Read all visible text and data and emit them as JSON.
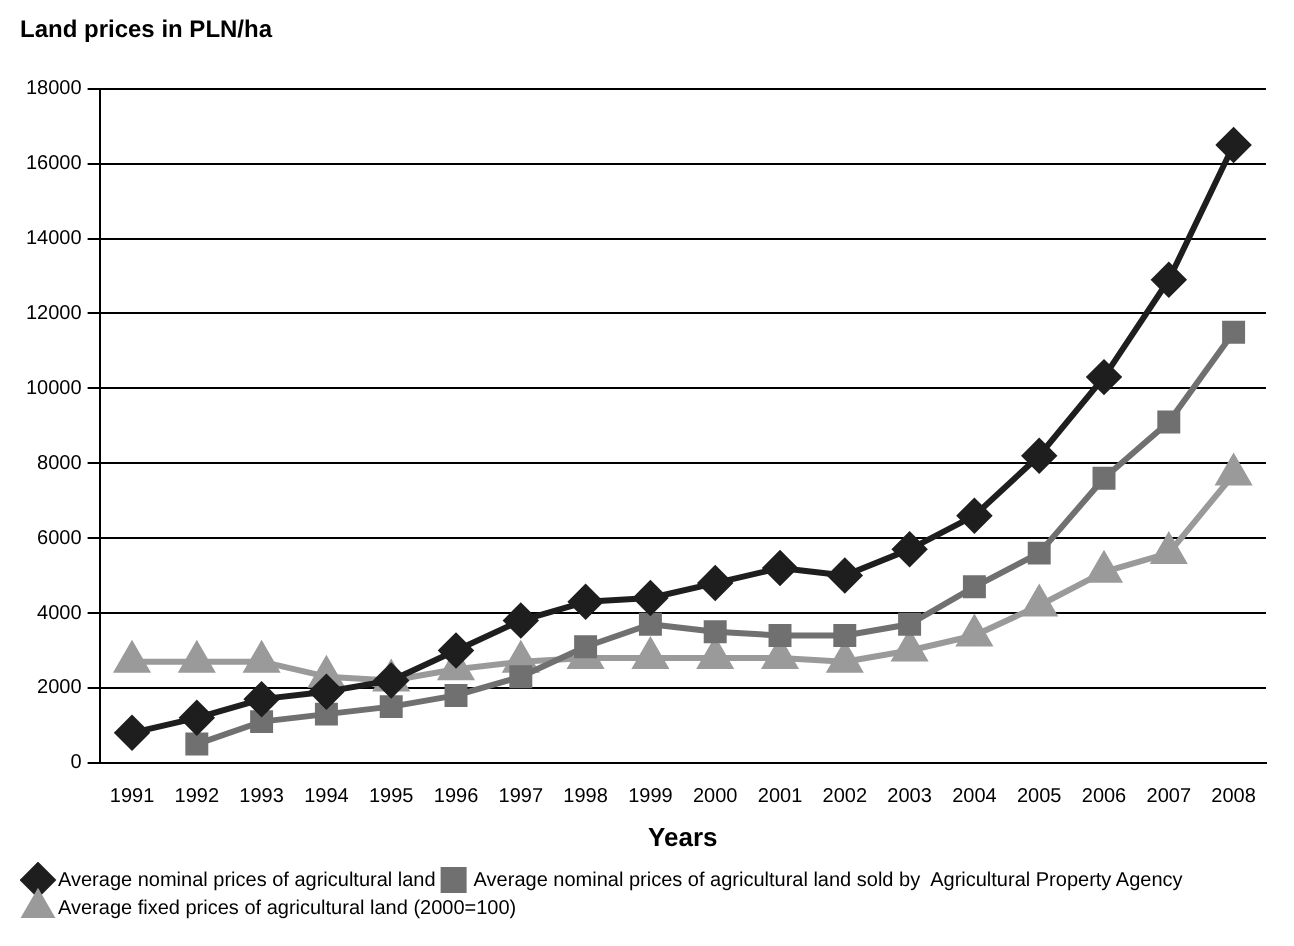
{
  "chart_data": {
    "type": "line",
    "title": "Land prices in PLN/ha",
    "xlabel": "Years",
    "categories": [
      "1991",
      "1992",
      "1993",
      "1994",
      "1995",
      "1996",
      "1997",
      "1998",
      "1999",
      "2000",
      "2001",
      "2002",
      "2003",
      "2004",
      "2005",
      "2006",
      "2007",
      "2008"
    ],
    "series": [
      {
        "name": "Average nominal prices of agricultural land",
        "color": "#1e1e1e",
        "marker": "diamond",
        "values": [
          800,
          1200,
          1700,
          1900,
          2200,
          3000,
          3800,
          4300,
          4400,
          4800,
          5200,
          5000,
          5700,
          6600,
          8200,
          10300,
          12900,
          16500
        ]
      },
      {
        "name": "Average nominal prices of agricultural land sold by  Agricultural Property Agency",
        "color": "#707070",
        "marker": "square",
        "values": [
          null,
          500,
          1100,
          1300,
          1500,
          1800,
          2300,
          3100,
          3700,
          3500,
          3400,
          3400,
          3700,
          4700,
          5600,
          7600,
          9100,
          11500
        ]
      },
      {
        "name": "Average fixed prices of agricultural land (2000=100)",
        "color": "#9a9a9a",
        "marker": "triangle",
        "values": [
          2700,
          2700,
          2700,
          2300,
          2200,
          2500,
          2700,
          2800,
          2800,
          2800,
          2800,
          2700,
          3000,
          3400,
          4200,
          5100,
          5600,
          7700
        ]
      }
    ],
    "ylim": [
      0,
      18000
    ],
    "yticks": [
      0,
      2000,
      4000,
      6000,
      8000,
      10000,
      12000,
      14000,
      16000,
      18000
    ],
    "grid": "y",
    "legend": "bottom"
  }
}
